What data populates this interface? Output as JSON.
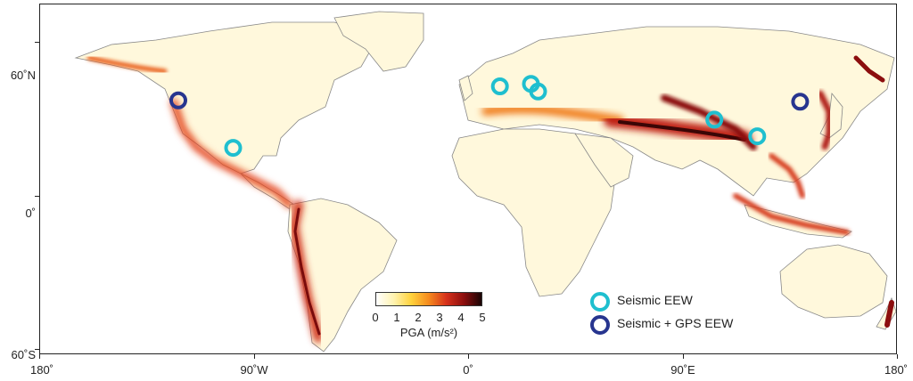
{
  "axes": {
    "y_labels": [
      "60˚N",
      "0˚",
      "60˚S"
    ],
    "x_labels": [
      "180˚",
      "90˚W",
      "0˚",
      "90˚E",
      "180˚"
    ]
  },
  "colorbar": {
    "title": "PGA (m/s²)",
    "ticks": [
      "0",
      "1",
      "2",
      "3",
      "4",
      "5"
    ],
    "colors": [
      "#ffffff",
      "#fff3b0",
      "#ffd23c",
      "#f58a1e",
      "#d6311b",
      "#8c0e0e",
      "#1a0505"
    ]
  },
  "legend": {
    "items": [
      {
        "label": "Seismic EEW",
        "color": "#1fbfcf"
      },
      {
        "label": "Seismic + GPS EEW",
        "color": "#27358f"
      }
    ]
  },
  "markers": [
    {
      "name": "us-west-coast",
      "type": "gps",
      "lon": -122,
      "lat": 37.5
    },
    {
      "name": "mexico",
      "type": "seismic",
      "lon": -99,
      "lat": 19
    },
    {
      "name": "italy",
      "type": "seismic",
      "lon": 13,
      "lat": 43
    },
    {
      "name": "romania",
      "type": "seismic",
      "lon": 26,
      "lat": 44
    },
    {
      "name": "turkey",
      "type": "seismic",
      "lon": 29,
      "lat": 41
    },
    {
      "name": "china",
      "type": "seismic",
      "lon": 103,
      "lat": 30
    },
    {
      "name": "taiwan",
      "type": "seismic",
      "lon": 121,
      "lat": 23.5
    },
    {
      "name": "japan",
      "type": "gps",
      "lon": 139,
      "lat": 37
    }
  ]
}
